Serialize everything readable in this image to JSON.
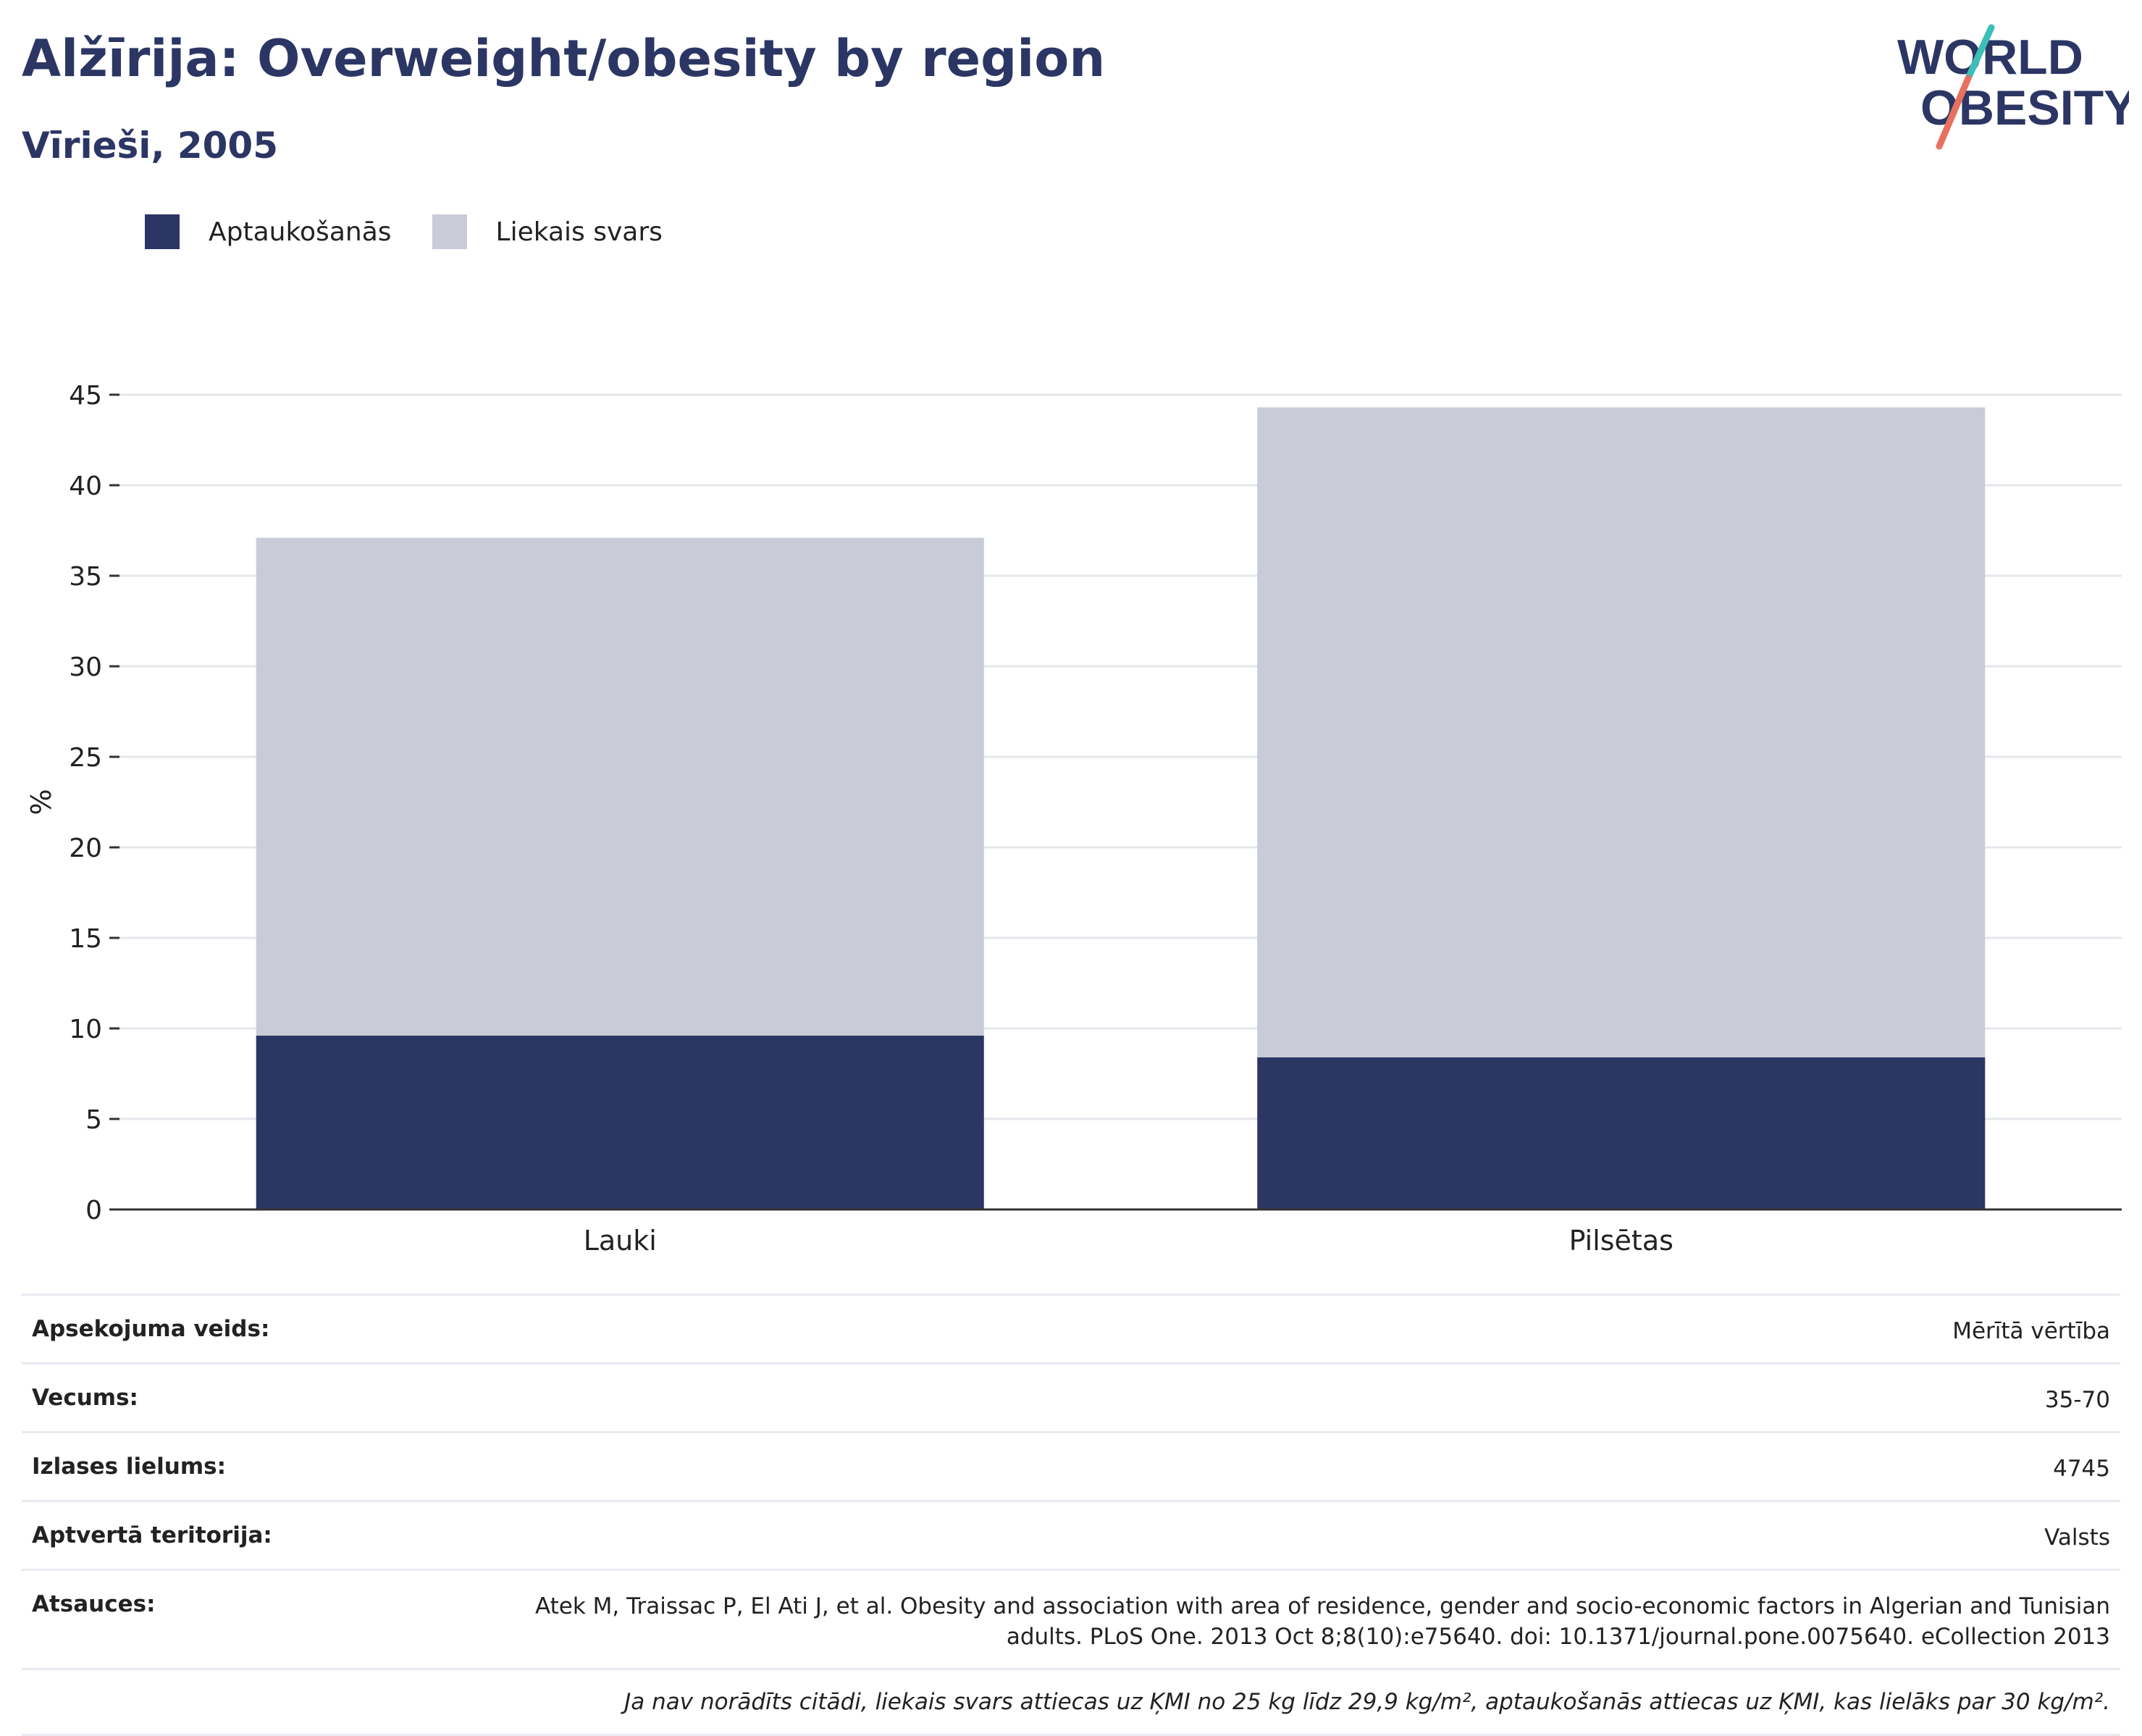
{
  "header": {
    "title": "Alžīrija: Overweight/obesity by region",
    "subtitle": "Vīrieši, 2005",
    "logo_line1": "WORLD",
    "logo_line2": "OBESITY"
  },
  "legend": [
    {
      "label": "Aptaukošanās",
      "color": "#2b3664"
    },
    {
      "label": "Liekais svars",
      "color": "#c9ccd8"
    }
  ],
  "chart_data": {
    "type": "bar",
    "stacked": true,
    "title": "Alžīrija: Overweight/obesity by region",
    "subtitle": "Vīrieši, 2005",
    "categories": [
      "Lauki",
      "Pilsētas"
    ],
    "series": [
      {
        "name": "Aptaukošanās",
        "color": "#2b3664",
        "values": [
          9.6,
          8.4
        ]
      },
      {
        "name": "Liekais svars",
        "color": "#c9ccd8",
        "values": [
          27.5,
          35.9
        ]
      }
    ],
    "ylabel": "%",
    "ylim": [
      0,
      45
    ],
    "yticks": [
      0,
      5,
      10,
      15,
      20,
      25,
      30,
      35,
      40,
      45
    ],
    "grid": true,
    "legend_position": "top-left"
  },
  "info": {
    "rows": [
      {
        "label": "Apsekojuma veids:",
        "value": "Mērītā vērtība"
      },
      {
        "label": "Vecums:",
        "value": "35-70"
      },
      {
        "label": "Izlases lielums:",
        "value": "4745"
      },
      {
        "label": "Aptvertā teritorija:",
        "value": "Valsts"
      },
      {
        "label": "Atsauces:",
        "value": "Atek M, Traissac P, El Ati J, et al. Obesity and association with area of residence, gender and socio-economic factors in Algerian and Tunisian adults. PLoS One. 2013 Oct 8;8(10):e75640. doi: 10.1371/journal.pone.0075640. eCollection 2013"
      }
    ],
    "note": "Ja nav norādīts citādi, liekais svars attiecas uz ĶMI no 25 kg līdz 29,9 kg/m², aptaukošanās attiecas uz ĶMI, kas lielāks par 30 kg/m²."
  }
}
